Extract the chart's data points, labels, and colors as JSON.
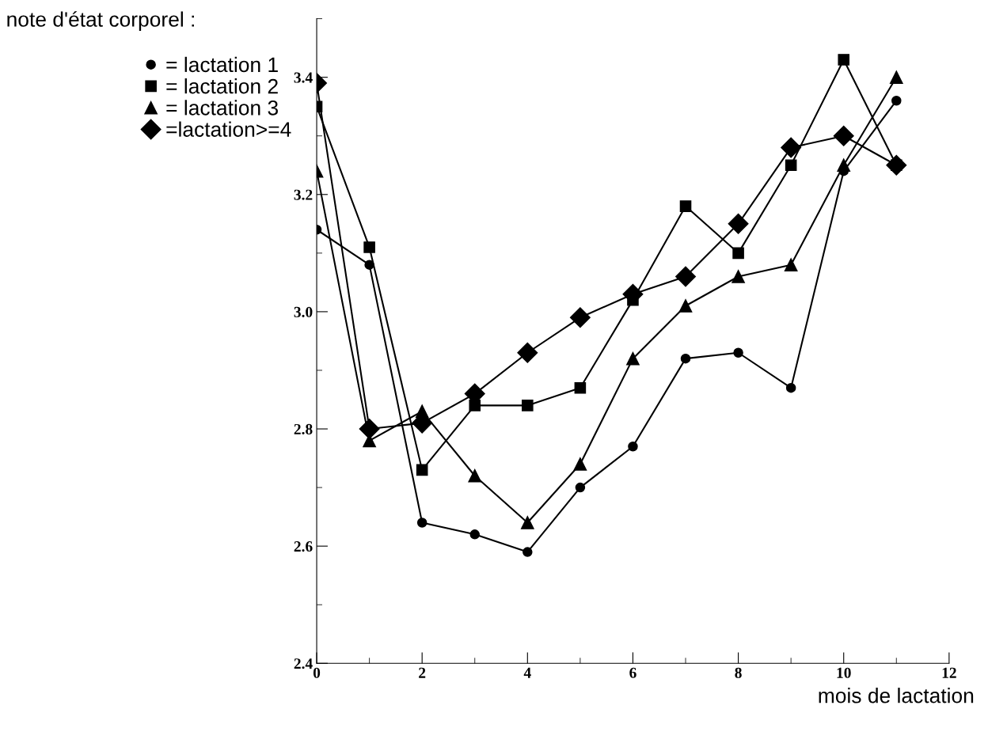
{
  "chart_data": {
    "type": "line",
    "title": "note d'état corporel :",
    "xlabel": "mois de lactation",
    "x": [
      0,
      1,
      2,
      3,
      4,
      5,
      6,
      7,
      8,
      9,
      10,
      11
    ],
    "series": [
      {
        "name": "= lactation 1",
        "color": "#000000",
        "marker": "circle",
        "values": [
          3.14,
          3.08,
          2.64,
          2.62,
          2.59,
          2.7,
          2.77,
          2.92,
          2.93,
          2.87,
          3.24,
          3.36
        ]
      },
      {
        "name": "= lactation 2",
        "color": "#000000",
        "marker": "square",
        "values": [
          3.35,
          3.11,
          2.73,
          2.84,
          2.84,
          2.87,
          3.02,
          3.18,
          3.1,
          3.25,
          3.43,
          3.25
        ]
      },
      {
        "name": "= lactation 3",
        "color": "#000000",
        "marker": "triangle",
        "values": [
          3.24,
          2.78,
          2.83,
          2.72,
          2.64,
          2.74,
          2.92,
          3.01,
          3.06,
          3.08,
          3.25,
          3.4
        ]
      },
      {
        "name": "=lactation>=4",
        "color": "#000000",
        "marker": "diamond",
        "values": [
          3.39,
          2.8,
          2.81,
          2.86,
          2.93,
          2.99,
          3.03,
          3.06,
          3.15,
          3.28,
          3.3,
          3.25
        ]
      }
    ],
    "xlim": [
      0,
      12
    ],
    "xticks": [
      0,
      2,
      4,
      6,
      8,
      10,
      12
    ],
    "ylim": [
      2.4,
      3.5
    ],
    "yticks": [
      2.4,
      2.6,
      2.8,
      {
        "value": 3.0,
        "label": "3.0"
      },
      3.2,
      3.4
    ],
    "grid": false,
    "legend": "top left",
    "line_style": "solid"
  }
}
